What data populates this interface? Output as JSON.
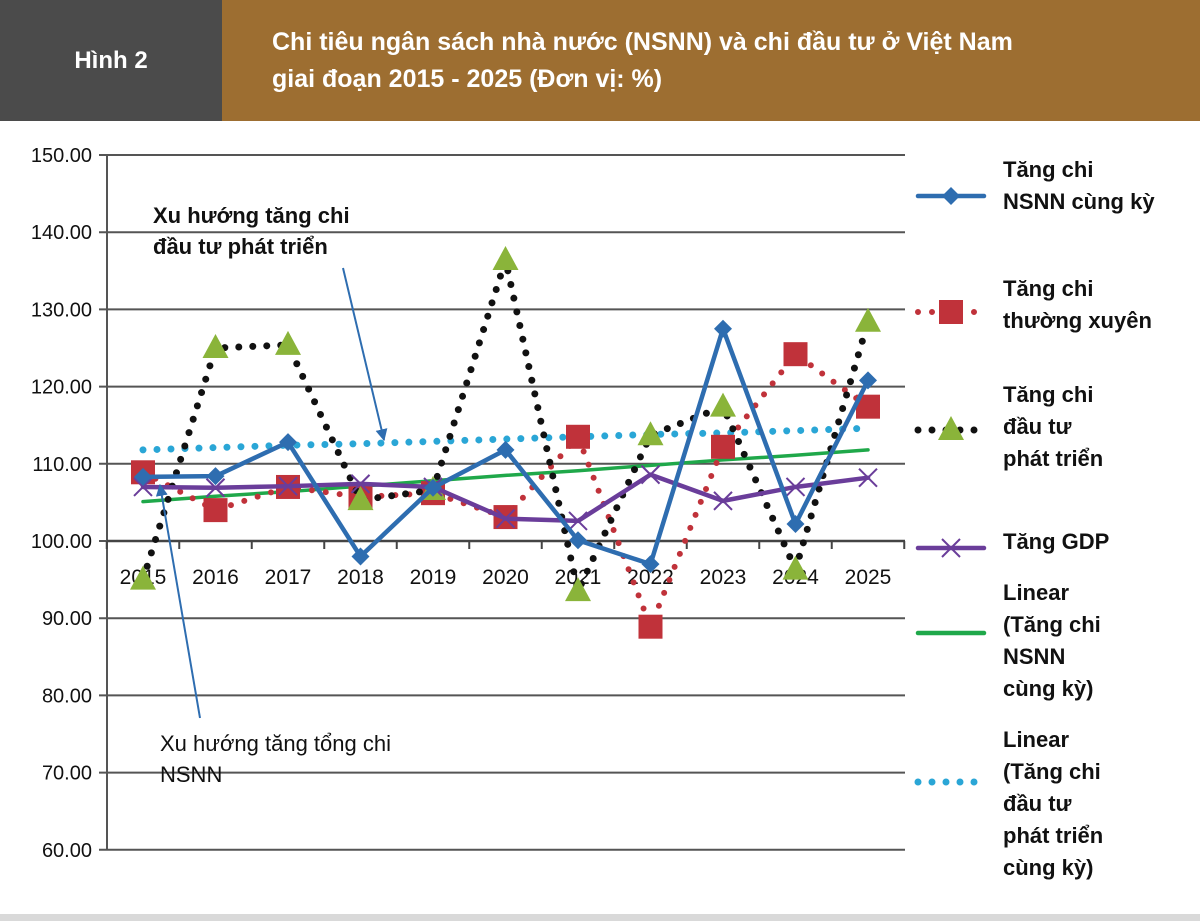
{
  "header": {
    "figure_label": "Hình 2",
    "title_line1": "Chi tiêu ngân sách nhà nước (NSNN) và chi đầu tư ở Việt Nam",
    "title_line2": "giai đoạn 2015 - 2025 (Đơn vị: %)"
  },
  "colors": {
    "header_dark": "#4b4b4b",
    "header_brown": "#9d6e31"
  },
  "annotations": {
    "investment_trend": "Xu hướng tăng chi\nđầu tư phát triển",
    "total_trend": "Xu hướng tăng tổng chi\nNSNN"
  },
  "chart_data": {
    "type": "line",
    "title": "Chi tiêu ngân sách nhà nước (NSNN) và chi đầu tư ở Việt Nam giai đoạn 2015 - 2025 (Đơn vị: %)",
    "categories": [
      "2015",
      "2016",
      "2017",
      "2018",
      "2019",
      "2020",
      "2021",
      "2022",
      "2023",
      "2024",
      "2025"
    ],
    "ylim": [
      60,
      150
    ],
    "yticks": [
      "60.00",
      "70.00",
      "80.00",
      "90.00",
      "100.00",
      "110.00",
      "120.00",
      "130.00",
      "140.00",
      "150.00"
    ],
    "x_axis_crosses_at": 100,
    "grid": true,
    "legend_placement": "right",
    "series": [
      {
        "name": "Tăng chi\nNSNN cùng kỳ",
        "color": "#2e6db0",
        "style": "solid",
        "marker": "diamond",
        "values": [
          108.3,
          108.4,
          112.8,
          98.0,
          106.9,
          111.8,
          100.1,
          97.0,
          127.5,
          102.2,
          120.8
        ]
      },
      {
        "name": "Tăng chi\nthường xuyên",
        "color": "#c0323a",
        "style": "dotted",
        "marker": "square",
        "values": [
          108.9,
          104.0,
          107.0,
          105.7,
          106.2,
          103.1,
          113.5,
          88.9,
          112.2,
          124.2,
          117.4
        ]
      },
      {
        "name": "Tăng chi\nđầu tư\nphát triển",
        "color": "#111111",
        "marker_color": "#8ab43a",
        "style": "dotted",
        "marker": "triangle",
        "values": [
          95.0,
          125.0,
          125.4,
          105.3,
          106.6,
          136.4,
          93.5,
          113.7,
          117.4,
          96.3,
          128.4
        ]
      },
      {
        "name": "Tăng GDP",
        "color": "#6a3d9a",
        "style": "solid",
        "marker": "x",
        "values": [
          107.0,
          106.9,
          107.1,
          107.4,
          107.0,
          102.9,
          102.6,
          108.6,
          105.2,
          107.0,
          108.2
        ]
      },
      {
        "name": "Linear\n(Tăng chi\nNSNN\ncùng kỳ)",
        "color": "#1fa84a",
        "style": "solid",
        "marker": "none",
        "values": [
          105.1,
          105.8,
          106.4,
          107.1,
          107.8,
          108.5,
          109.1,
          109.8,
          110.5,
          111.1,
          111.8
        ]
      },
      {
        "name": "Linear\n(Tăng chi\nđầu tư\nphát triển\ncùng kỳ)",
        "color": "#2aa6d6",
        "style": "dotted",
        "marker": "none",
        "values": [
          111.8,
          112.1,
          112.4,
          112.6,
          112.9,
          113.2,
          113.5,
          113.8,
          114.0,
          114.3,
          114.6
        ]
      }
    ]
  }
}
